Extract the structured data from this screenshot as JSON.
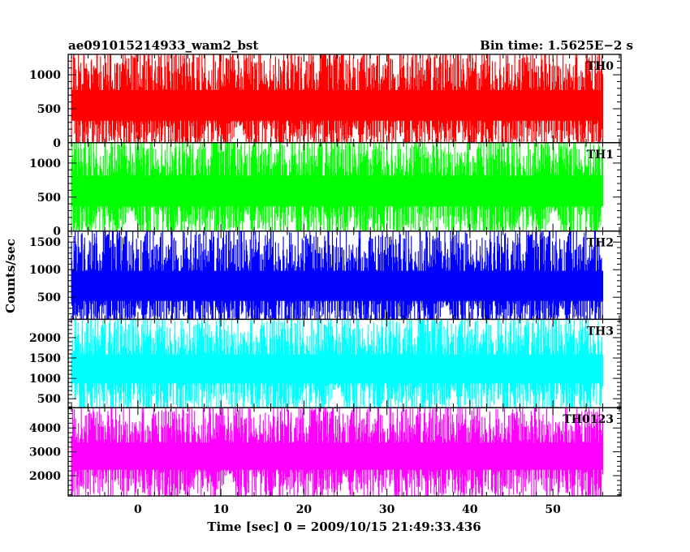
{
  "chart_data": {
    "type": "line",
    "title": "ae091015214933_wam2_bst",
    "subtitle": "Bin time: 1.5625E−2 s",
    "xlabel": "Time [sec] 0 = 2009/10/15 21:49:33.436",
    "ylabel": "Counts/sec",
    "xlim": [
      -8.4,
      58.2
    ],
    "x_ticks": [
      0,
      10,
      20,
      30,
      40,
      50
    ],
    "x_data_range": [
      -8.0,
      56.0
    ],
    "bin_time_s": 0.015625,
    "grid": false,
    "series": [
      {
        "name": "TH0",
        "color": "#ff0000",
        "ylim": [
          0,
          1300
        ],
        "y_ticks": [
          0,
          500,
          1000
        ],
        "mean": 560,
        "typical_min": 150,
        "typical_max": 1100,
        "peak_max": 1300
      },
      {
        "name": "TH1",
        "color": "#00ff00",
        "ylim": [
          0,
          1300
        ],
        "y_ticks": [
          0,
          500,
          1000
        ],
        "mean": 600,
        "typical_min": 150,
        "typical_max": 1100,
        "peak_max": 1300
      },
      {
        "name": "TH2",
        "color": "#0000ff",
        "ylim": [
          100,
          1700
        ],
        "y_ticks": [
          500,
          1000,
          1500
        ],
        "mean": 720,
        "typical_min": 200,
        "typical_max": 1350,
        "peak_max": 1700
      },
      {
        "name": "TH3",
        "color": "#00ffff",
        "ylim": [
          280,
          2450
        ],
        "y_ticks": [
          500,
          1000,
          1500,
          2000
        ],
        "mean": 1250,
        "typical_min": 500,
        "typical_max": 2000,
        "peak_max": 2450
      },
      {
        "name": "TH0123",
        "color": "#ff00ff",
        "ylim": [
          1150,
          4850
        ],
        "y_ticks": [
          2000,
          3000,
          4000
        ],
        "mean": 2850,
        "typical_min": 1600,
        "typical_max": 4000,
        "peak_max": 4850
      }
    ]
  }
}
